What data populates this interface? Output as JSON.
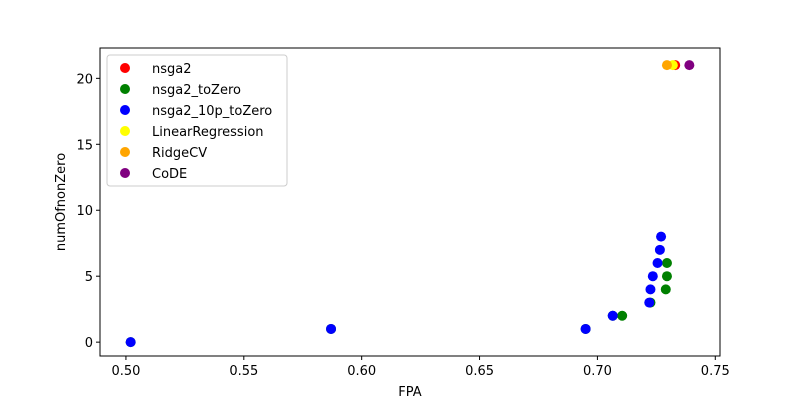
{
  "chart_data": {
    "type": "scatter",
    "title": "",
    "xlabel": "FPA",
    "ylabel": "numOfnonZero",
    "xlim": [
      0.489,
      0.752
    ],
    "ylim": [
      -1.05,
      22.3
    ],
    "xticks": [
      0.5,
      0.55,
      0.6,
      0.65,
      0.7,
      0.75
    ],
    "xtick_labels": [
      "0.50",
      "0.55",
      "0.60",
      "0.65",
      "0.70",
      "0.75"
    ],
    "yticks": [
      0,
      5,
      10,
      15,
      20
    ],
    "ytick_labels": [
      "0",
      "5",
      "10",
      "15",
      "20"
    ],
    "grid": false,
    "legend_position": "top-left",
    "series": [
      {
        "name": "nsga2",
        "color": "#ff0000",
        "points": [
          [
            0.733,
            21
          ]
        ]
      },
      {
        "name": "nsga2_toZero",
        "color": "#008000",
        "points": [
          [
            0.502,
            0
          ],
          [
            0.587,
            1
          ],
          [
            0.695,
            1
          ],
          [
            0.7065,
            2
          ],
          [
            0.7105,
            2
          ],
          [
            0.7225,
            3
          ],
          [
            0.729,
            4
          ],
          [
            0.7295,
            5
          ],
          [
            0.7295,
            6
          ]
        ]
      },
      {
        "name": "nsga2_10p_toZero",
        "color": "#0000ff",
        "points": [
          [
            0.502,
            0
          ],
          [
            0.587,
            1
          ],
          [
            0.695,
            1
          ],
          [
            0.7065,
            2
          ],
          [
            0.722,
            3
          ],
          [
            0.7225,
            4
          ],
          [
            0.7235,
            5
          ],
          [
            0.7255,
            6
          ],
          [
            0.7265,
            7
          ],
          [
            0.727,
            8
          ]
        ]
      },
      {
        "name": "LinearRegression",
        "color": "#ffff00",
        "points": [
          [
            0.732,
            21
          ]
        ]
      },
      {
        "name": "RidgeCV",
        "color": "#ffa500",
        "points": [
          [
            0.7295,
            21
          ]
        ]
      },
      {
        "name": "CoDE",
        "color": "#800080",
        "points": [
          [
            0.739,
            21
          ]
        ]
      }
    ]
  }
}
